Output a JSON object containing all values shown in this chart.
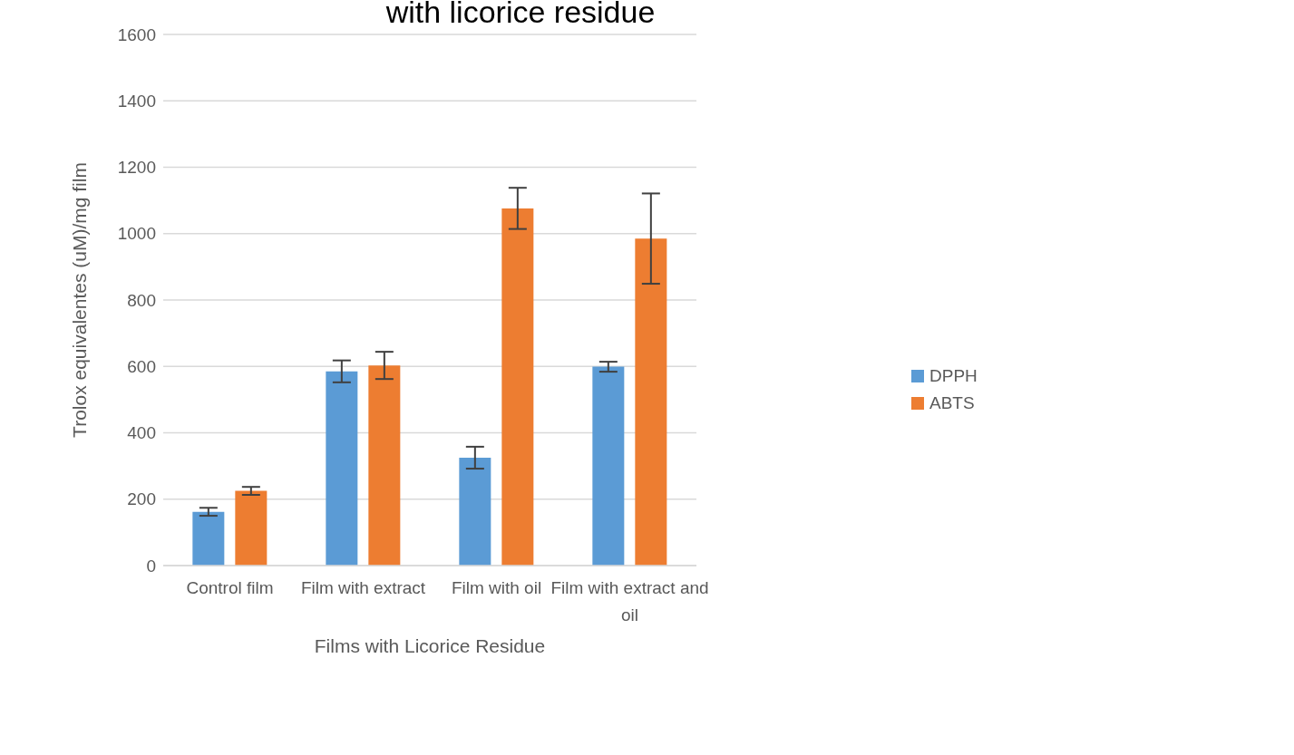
{
  "chart_data": {
    "type": "bar",
    "title": "with licorice residue",
    "xlabel": "Films with Licorice Residue",
    "ylabel": "Trolox equivalentes (uM)/mg film",
    "categories": [
      "Control film",
      "Film with extract",
      "Film with oil",
      "Film with extract and oil"
    ],
    "series": [
      {
        "name": "DPPH",
        "color": "#5b9bd5",
        "values": [
          162,
          585,
          325,
          599
        ],
        "errors": [
          12,
          33,
          33,
          15
        ]
      },
      {
        "name": "ABTS",
        "color": "#ed7d31",
        "values": [
          225,
          603,
          1076,
          985
        ],
        "errors": [
          12,
          41,
          62,
          136
        ]
      }
    ],
    "ylim": [
      0,
      1600
    ],
    "yticks": [
      0,
      200,
      400,
      600,
      800,
      1000,
      1200,
      1400,
      1600
    ],
    "grid": "y",
    "legend": "right"
  }
}
